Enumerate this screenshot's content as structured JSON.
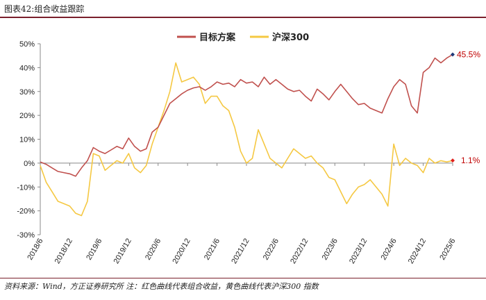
{
  "header": {
    "title": "图表42:组合收益跟踪"
  },
  "footer": {
    "source": "资料来源：Wind，方正证券研究所  注：红色曲线代表组合收益，黄色曲线代表沪深300 指数"
  },
  "colors": {
    "strategy": "#c0504d",
    "index": "#f5c842",
    "axis": "#888888",
    "rule": "#7a1f2b"
  },
  "chart_data": {
    "type": "line",
    "title": "",
    "xlabel": "",
    "ylabel": "",
    "ylim": [
      -30,
      50
    ],
    "yticks": [
      50,
      40,
      30,
      20,
      10,
      0,
      -10,
      -20,
      -30
    ],
    "ytick_labels": [
      "50%",
      "40%",
      "30%",
      "20%",
      "10%",
      "0%",
      "-10%",
      "-20%",
      "-30%"
    ],
    "xlim": [
      "2018/6",
      "2025/6"
    ],
    "xtick_labels": [
      "2018/6",
      "2018/12",
      "2019/6",
      "2019/12",
      "2020/6",
      "2020/12",
      "2021/6",
      "2021/12",
      "2022/6",
      "2022/12",
      "2023/6",
      "2023/12",
      "2024/6",
      "2024/12",
      "2025/6"
    ],
    "legend": {
      "position": "top-center",
      "entries": [
        "目标方案",
        "沪深300"
      ]
    },
    "series": [
      {
        "name": "目标方案",
        "color": "#c0504d",
        "x": [
          0,
          0.2,
          0.4,
          0.6,
          0.8,
          1.0,
          1.2,
          1.4,
          1.6,
          1.8,
          2.0,
          2.2,
          2.4,
          2.6,
          2.8,
          3.0,
          3.2,
          3.4,
          3.6,
          3.8,
          4.0,
          4.2,
          4.4,
          4.6,
          4.8,
          5.0,
          5.2,
          5.4,
          5.6,
          5.8,
          6.0,
          6.2,
          6.4,
          6.6,
          6.8,
          7.0,
          7.2,
          7.4,
          7.6,
          7.8,
          8.0,
          8.2,
          8.4,
          8.6,
          8.8,
          9.0,
          9.2,
          9.4,
          9.6,
          9.8,
          10.0,
          10.2,
          10.4,
          10.6,
          10.8,
          11.0,
          11.2,
          11.4,
          11.6,
          11.8,
          12.0,
          12.2,
          12.4,
          12.6,
          12.8,
          13.0,
          13.2,
          13.4,
          13.6,
          13.8,
          14.0
        ],
        "values": [
          0.5,
          -0.5,
          -2.0,
          -3.5,
          -4.0,
          -4.5,
          -5.5,
          -2.0,
          1.0,
          6.5,
          5.0,
          4.0,
          5.5,
          7.0,
          6.0,
          10.5,
          7.0,
          5.0,
          6.0,
          13.0,
          15.0,
          20.0,
          25.0,
          27.0,
          29.0,
          30.5,
          31.5,
          32.0,
          30.5,
          32.0,
          34.0,
          33.0,
          33.5,
          32.0,
          35.0,
          33.5,
          34.0,
          32.0,
          36.0,
          33.0,
          35.0,
          33.0,
          31.0,
          30.0,
          30.5,
          28.0,
          26.0,
          31.0,
          29.0,
          26.5,
          30.0,
          33.0,
          30.0,
          27.0,
          24.5,
          25.0,
          23.0,
          22.0,
          21.0,
          27.0,
          32.0,
          35.0,
          33.0,
          24.0,
          21.0,
          38.0,
          40.0,
          44.0,
          42.0,
          44.0,
          45.5
        ]
      },
      {
        "name": "沪深300",
        "color": "#f5c842",
        "x": [
          0,
          0.2,
          0.4,
          0.6,
          0.8,
          1.0,
          1.2,
          1.4,
          1.6,
          1.8,
          2.0,
          2.2,
          2.4,
          2.6,
          2.8,
          3.0,
          3.2,
          3.4,
          3.6,
          3.8,
          4.0,
          4.2,
          4.4,
          4.6,
          4.8,
          5.0,
          5.2,
          5.4,
          5.6,
          5.8,
          6.0,
          6.2,
          6.4,
          6.6,
          6.8,
          7.0,
          7.2,
          7.4,
          7.6,
          7.8,
          8.0,
          8.2,
          8.4,
          8.6,
          8.8,
          9.0,
          9.2,
          9.4,
          9.6,
          9.8,
          10.0,
          10.2,
          10.4,
          10.6,
          10.8,
          11.0,
          11.2,
          11.4,
          11.6,
          11.8,
          12.0,
          12.2,
          12.4,
          12.6,
          12.8,
          13.0,
          13.2,
          13.4,
          13.6,
          13.8,
          14.0
        ],
        "values": [
          -1.0,
          -8.0,
          -12.0,
          -16.0,
          -17.0,
          -18.0,
          -21.0,
          -22.0,
          -16.0,
          4.0,
          3.0,
          -3.0,
          -1.0,
          1.0,
          0.0,
          4.0,
          -2.0,
          -4.0,
          -1.0,
          8.0,
          15.0,
          22.0,
          30.0,
          42.0,
          34.0,
          35.0,
          36.0,
          33.0,
          25.0,
          28.0,
          28.0,
          24.0,
          22.0,
          15.0,
          5.0,
          0.0,
          2.0,
          14.0,
          8.0,
          2.0,
          0.0,
          -2.0,
          2.0,
          6.0,
          4.0,
          2.0,
          3.0,
          0.0,
          -2.0,
          -6.0,
          -7.0,
          -12.0,
          -17.0,
          -13.0,
          -10.0,
          -9.0,
          -7.0,
          -10.0,
          -13.0,
          -18.0,
          8.0,
          -1.0,
          2.0,
          0.0,
          -1.0,
          -4.0,
          2.0,
          0.0,
          1.0,
          0.5,
          1.1
        ]
      }
    ],
    "annotations": [
      {
        "series": "目标方案",
        "label": "45.5%"
      },
      {
        "series": "沪深300",
        "label": "1.1%"
      }
    ]
  }
}
